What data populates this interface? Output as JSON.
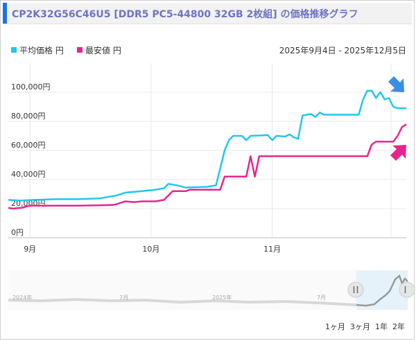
{
  "title": "CP2K32G56C46U5 [DDR5 PC5-44800 32GB 2枚組] の価格推移グラフ",
  "date_range": "2025年9月4日 - 2025年12月5日",
  "colors": {
    "accent": "#1a73e8",
    "title_text": "#6f73c4",
    "avg": "#1ec8f0",
    "min": "#e8248c",
    "arrow_blue": "#3a8ee6",
    "arrow_pink": "#e8248c",
    "navigator_line": "#999999",
    "navigator_bg": "#e6f2fa"
  },
  "period_buttons": [
    "1ヶ月",
    "3ヶ月",
    "1年",
    "2年"
  ],
  "navigator": {
    "labels": [
      "2024年",
      "7月",
      "2025年",
      "7月"
    ],
    "handle_icon": "pause-bars-icon"
  },
  "chart_data": {
    "type": "line",
    "x_start": "2025-09-04",
    "x_end": "2025-12-05",
    "xticks": [
      {
        "date": "2025-09-09",
        "label": "9月"
      },
      {
        "date": "2025-10-07",
        "label": "10月"
      },
      {
        "date": "2025-11-04",
        "label": "11月"
      }
    ],
    "ylim": [
      0,
      120000
    ],
    "yticks": [
      {
        "value": 0,
        "label": "0円"
      },
      {
        "value": 20000,
        "label": "20,000円"
      },
      {
        "value": 40000,
        "label": "40,000円"
      },
      {
        "value": 60000,
        "label": "60,000円"
      },
      {
        "value": 80000,
        "label": "80,000円"
      },
      {
        "value": 100000,
        "label": "100,000円"
      }
    ],
    "grid": true,
    "legend_position": "top-left",
    "series": [
      {
        "name": "平均価格 円",
        "points": [
          [
            "2025-09-04",
            26000
          ],
          [
            "2025-09-07",
            25500
          ],
          [
            "2025-09-10",
            26000
          ],
          [
            "2025-09-15",
            26500
          ],
          [
            "2025-09-20",
            26500
          ],
          [
            "2025-09-25",
            27000
          ],
          [
            "2025-09-27",
            28000
          ],
          [
            "2025-09-29",
            29000
          ],
          [
            "2025-10-01",
            31000
          ],
          [
            "2025-10-05",
            32000
          ],
          [
            "2025-10-08",
            33000
          ],
          [
            "2025-10-10",
            34000
          ],
          [
            "2025-10-11",
            37000
          ],
          [
            "2025-10-13",
            36000
          ],
          [
            "2025-10-15",
            34500
          ],
          [
            "2025-10-20",
            35000
          ],
          [
            "2025-10-22",
            36000
          ],
          [
            "2025-10-24",
            60000
          ],
          [
            "2025-10-25",
            67000
          ],
          [
            "2025-10-26",
            70000
          ],
          [
            "2025-10-28",
            70000
          ],
          [
            "2025-10-29",
            67000
          ],
          [
            "2025-10-30",
            70000
          ],
          [
            "2025-11-03",
            70500
          ],
          [
            "2025-11-04",
            67000
          ],
          [
            "2025-11-05",
            70000
          ],
          [
            "2025-11-07",
            69500
          ],
          [
            "2025-11-08",
            71000
          ],
          [
            "2025-11-09",
            69000
          ],
          [
            "2025-11-10",
            68000
          ],
          [
            "2025-11-11",
            84000
          ],
          [
            "2025-11-12",
            84500
          ],
          [
            "2025-11-13",
            85000
          ],
          [
            "2025-11-14",
            83000
          ],
          [
            "2025-11-15",
            86000
          ],
          [
            "2025-11-16",
            84500
          ],
          [
            "2025-11-24",
            84500
          ],
          [
            "2025-11-25",
            95000
          ],
          [
            "2025-11-26",
            101000
          ],
          [
            "2025-11-27",
            101000
          ],
          [
            "2025-11-28",
            96000
          ],
          [
            "2025-11-29",
            100000
          ],
          [
            "2025-11-30",
            95000
          ],
          [
            "2025-12-01",
            96000
          ],
          [
            "2025-12-02",
            90000
          ],
          [
            "2025-12-03",
            89000
          ],
          [
            "2025-12-05",
            89000
          ]
        ]
      },
      {
        "name": "最安値 円",
        "points": [
          [
            "2025-09-04",
            20500
          ],
          [
            "2025-09-05",
            20000
          ],
          [
            "2025-09-07",
            20500
          ],
          [
            "2025-09-09",
            22000
          ],
          [
            "2025-09-20",
            22000
          ],
          [
            "2025-09-28",
            22500
          ],
          [
            "2025-09-29",
            23000
          ],
          [
            "2025-10-01",
            25000
          ],
          [
            "2025-10-03",
            24500
          ],
          [
            "2025-10-05",
            25000
          ],
          [
            "2025-10-08",
            25000
          ],
          [
            "2025-10-10",
            26000
          ],
          [
            "2025-10-12",
            32000
          ],
          [
            "2025-10-15",
            32000
          ],
          [
            "2025-10-16",
            33000
          ],
          [
            "2025-10-23",
            33000
          ],
          [
            "2025-10-24",
            42000
          ],
          [
            "2025-10-29",
            42000
          ],
          [
            "2025-10-30",
            56000
          ],
          [
            "2025-10-31",
            42000
          ],
          [
            "2025-11-01",
            56000
          ],
          [
            "2025-11-22",
            56000
          ],
          [
            "2025-11-26",
            56000
          ],
          [
            "2025-11-27",
            64000
          ],
          [
            "2025-11-28",
            66000
          ],
          [
            "2025-12-02",
            66000
          ],
          [
            "2025-12-03",
            70000
          ],
          [
            "2025-12-04",
            76000
          ],
          [
            "2025-12-05",
            78000
          ]
        ]
      }
    ]
  }
}
